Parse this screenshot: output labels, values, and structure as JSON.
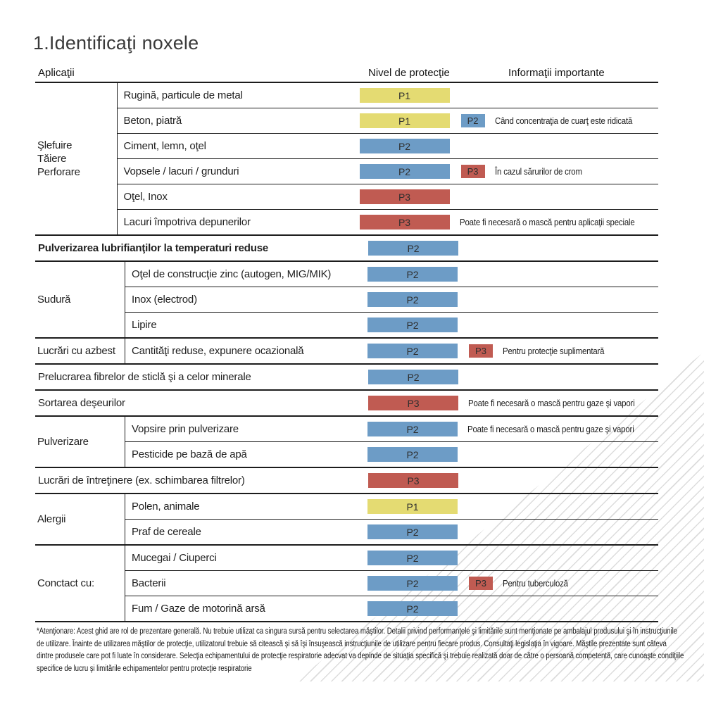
{
  "title": "1.Identificaţi noxele",
  "headers": {
    "applications": "Aplicaţii",
    "protection_level": "Nivel de protecţie",
    "important_info": "Informaţii importante"
  },
  "badge_colors": {
    "P1": "#e4db72",
    "P2": "#6d9cc6",
    "P3": "#c05b52"
  },
  "sections": [
    {
      "type": "group",
      "category_lines": [
        "Şlefuire",
        "Tăiere",
        "Perforare"
      ],
      "rows": [
        {
          "item": "Rugină, particule de metal",
          "badges": [
            "P1"
          ],
          "info": ""
        },
        {
          "item": "Beton, piatră",
          "badges": [
            "P1",
            "P2"
          ],
          "info": "Când concentraţia de cuarţ este ridicată"
        },
        {
          "item": "Ciment, lemn, oţel",
          "badges": [
            "P2"
          ],
          "info": ""
        },
        {
          "item": "Vopsele / lacuri / grunduri",
          "badges": [
            "P2",
            "P3"
          ],
          "info": "În cazul sărurilor de crom"
        },
        {
          "item": "Oţel, Inox",
          "badges": [
            "P3"
          ],
          "info": ""
        },
        {
          "item": "Lacuri împotriva depunerilor",
          "badges": [
            "P3"
          ],
          "info": "Poate fi necesară o mască pentru aplicaţii speciale"
        }
      ]
    },
    {
      "type": "full",
      "item": "Pulverizarea lubrifianţilor la temperaturi reduse",
      "bold": true,
      "badges": [
        "P2"
      ],
      "info": ""
    },
    {
      "type": "group",
      "category_lines": [
        "Sudură"
      ],
      "rows": [
        {
          "item": "Oţel de construcţie zinc (autogen, MIG/MIK)",
          "badges": [
            "P2"
          ],
          "info": ""
        },
        {
          "item": "Inox (electrod)",
          "badges": [
            "P2"
          ],
          "info": ""
        },
        {
          "item": "Lipire",
          "badges": [
            "P2"
          ],
          "info": ""
        }
      ]
    },
    {
      "type": "group",
      "category_lines": [
        "Lucrări cu azbest"
      ],
      "rows": [
        {
          "item": "Cantităţi reduse, expunere ocazională",
          "badges": [
            "P2",
            "P3"
          ],
          "info": "Pentru protecţie suplimentară"
        }
      ]
    },
    {
      "type": "full",
      "item": "Prelucrarea fibrelor de sticlă şi a celor minerale",
      "bold": false,
      "badges": [
        "P2"
      ],
      "info": ""
    },
    {
      "type": "full",
      "item": "Sortarea deşeurilor",
      "bold": false,
      "badges": [
        "P3"
      ],
      "info": "Poate fi necesară o mască pentru gaze şi vapori"
    },
    {
      "type": "group",
      "category_lines": [
        "Pulverizare"
      ],
      "rows": [
        {
          "item": "Vopsire prin pulverizare",
          "badges": [
            "P2"
          ],
          "info": "Poate fi necesară o mască pentru gaze şi vapori"
        },
        {
          "item": "Pesticide pe bază de apă",
          "badges": [
            "P2"
          ],
          "info": ""
        }
      ]
    },
    {
      "type": "full",
      "item": "Lucrări de întreţinere (ex. schimbarea filtrelor)",
      "bold": false,
      "badges": [
        "P3"
      ],
      "info": ""
    },
    {
      "type": "group",
      "category_lines": [
        "Alergii"
      ],
      "rows": [
        {
          "item": "Polen, animale",
          "badges": [
            "P1"
          ],
          "info": ""
        },
        {
          "item": "Praf de cereale",
          "badges": [
            "P2"
          ],
          "info": ""
        }
      ]
    },
    {
      "type": "group",
      "category_lines": [
        "Conctact cu:"
      ],
      "rows": [
        {
          "item": "Mucegai / Ciuperci",
          "badges": [
            "P2"
          ],
          "info": ""
        },
        {
          "item": "Bacterii",
          "badges": [
            "P2",
            "P3"
          ],
          "info": "Pentru tuberculoză"
        },
        {
          "item": "Fum / Gaze de motorină arsă",
          "badges": [
            "P2"
          ],
          "info": ""
        }
      ]
    }
  ],
  "footnote": {
    "lines": [
      "*Atenţionare: Acest ghid are rol de prezentare generală. Nu trebuie utilizat ca singura sursă pentru selectarea măştilor. Detalii privind performanţele şi limitările sunt menţionate pe ambalajul produsului şi în instrucţiunile",
      "de utilizare. Înainte de utilizarea măştilor de protecţie, utilizatorul trebuie să citească şi să îşi însuşească instrucţiunile de utilizare pentru fiecare produs. Consultaţi legislaţia în vigoare. Măştile prezentate sunt câteva",
      "dintre produsele care pot fi luate în considerare. Selecţia echipamentului de protecţie respiratorie adecvat va depinde de situaţia specifică şi trebuie realizată doar de către o persoană competentă, care cunoaşte condiţiile",
      "specifice de lucru şi limitările echipamentelor pentru protecţie respiratorie"
    ]
  }
}
